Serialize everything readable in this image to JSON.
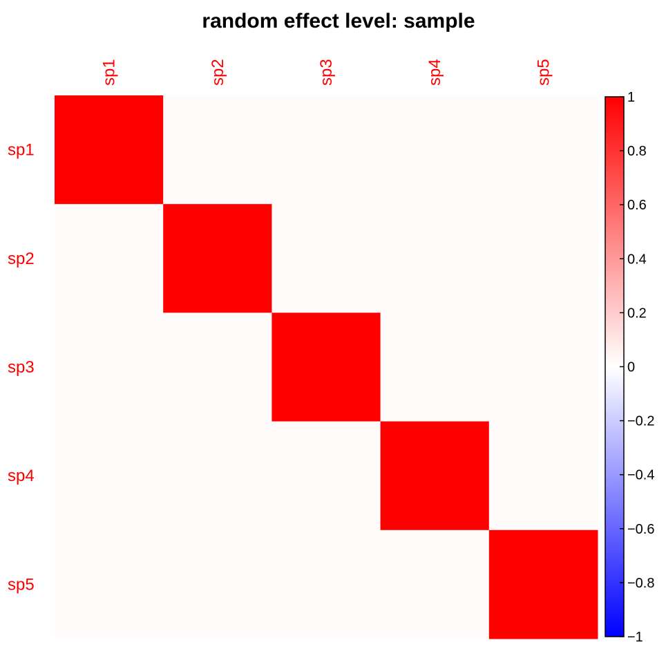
{
  "chart_data": {
    "type": "heatmap",
    "title": "random effect level: sample",
    "row_labels": [
      "sp1",
      "sp2",
      "sp3",
      "sp4",
      "sp5"
    ],
    "col_labels": [
      "sp1",
      "sp2",
      "sp3",
      "sp4",
      "sp5"
    ],
    "values": [
      [
        1,
        0,
        0,
        0,
        0
      ],
      [
        0,
        1,
        0,
        0,
        0
      ],
      [
        0,
        0,
        1,
        0,
        0
      ],
      [
        0,
        0,
        0,
        1,
        0
      ],
      [
        0,
        0,
        0,
        0,
        1
      ]
    ],
    "colorbar": {
      "range": [
        -1,
        1
      ],
      "ticks": [
        "1",
        "0.8",
        "0.6",
        "0.4",
        "0.2",
        "0",
        "−0.2",
        "−0.4",
        "−0.6",
        "−0.8",
        "−1"
      ],
      "tick_values": [
        1,
        0.8,
        0.6,
        0.4,
        0.2,
        0,
        -0.2,
        -0.4,
        -0.6,
        -0.8,
        -1
      ],
      "colors": {
        "low": "#0000FF",
        "mid": "#FFFFFF",
        "high": "#FF0000"
      }
    },
    "label_color": "#FF0000",
    "grid": false
  }
}
